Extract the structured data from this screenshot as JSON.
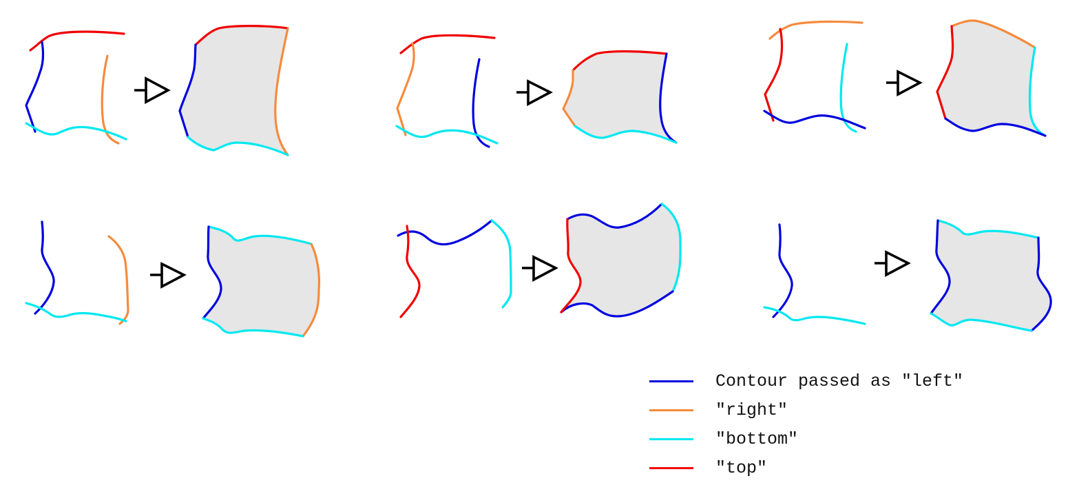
{
  "colors": {
    "left": "#0000e0",
    "right": "#f68a3c",
    "bottom": "#00e8f0",
    "top": "#f00000",
    "fill": "#e6e6e6",
    "arrow": "#000000"
  },
  "legend": {
    "items": [
      {
        "role": "left",
        "label": "Contour passed as \"left\""
      },
      {
        "role": "right",
        "label": "\"right\""
      },
      {
        "role": "bottom",
        "label": "\"bottom\""
      },
      {
        "role": "top",
        "label": "\"top\""
      }
    ]
  },
  "panels": [
    {
      "name": "example-1",
      "input_roles": [
        "top",
        "left",
        "right",
        "bottom"
      ],
      "output_roles": [
        "top",
        "left",
        "right",
        "bottom"
      ]
    },
    {
      "name": "example-2",
      "input_roles": [
        "top",
        "right",
        "left",
        "bottom"
      ],
      "output_roles": [
        "top",
        "right",
        "left",
        "bottom"
      ]
    },
    {
      "name": "example-3",
      "input_roles": [
        "right",
        "top",
        "bottom",
        "left"
      ],
      "output_roles": [
        "right",
        "top",
        "bottom",
        "left"
      ]
    },
    {
      "name": "example-4",
      "input_roles": [
        "left",
        "right",
        "bottom"
      ],
      "output_roles": [
        "bottom",
        "right",
        "left"
      ]
    },
    {
      "name": "example-5",
      "input_roles": [
        "left",
        "top",
        "bottom"
      ],
      "output_roles": [
        "left",
        "bottom",
        "top"
      ]
    },
    {
      "name": "example-6",
      "input_roles": [
        "left",
        "bottom"
      ],
      "output_roles": [
        "bottom",
        "left"
      ]
    }
  ]
}
